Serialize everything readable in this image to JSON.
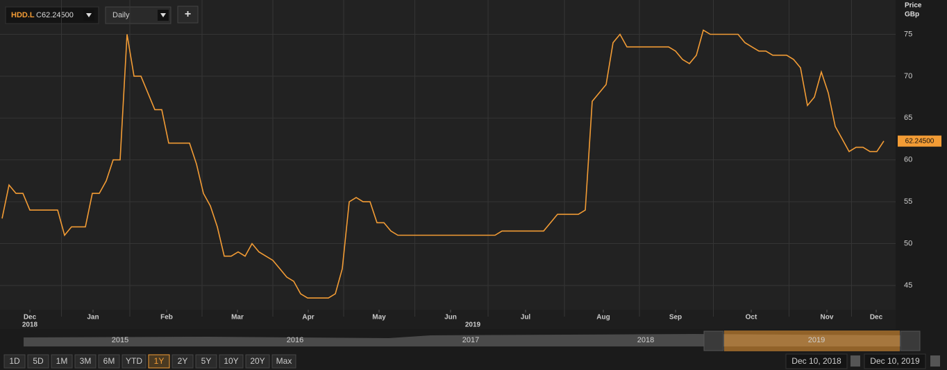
{
  "toolbar": {
    "symbol": "HDD.L",
    "close_prefix": "C",
    "close": "62.24500",
    "interval": "Daily",
    "add": "+"
  },
  "chart_data": {
    "type": "line",
    "axis_title": [
      "Price",
      "GBp"
    ],
    "color": "#f39c35",
    "values": [
      53,
      57,
      56,
      56,
      54,
      54,
      54,
      54,
      54,
      51,
      52,
      52,
      52,
      56,
      56,
      57.5,
      60,
      60,
      75,
      70,
      70,
      68,
      66,
      66,
      62,
      62,
      62,
      62,
      59.5,
      56,
      54.5,
      52,
      48.5,
      48.5,
      49,
      48.5,
      50,
      49,
      48.5,
      48,
      47,
      46,
      45.5,
      44,
      43.5,
      43.5,
      43.5,
      43.5,
      44,
      47,
      55,
      55.5,
      55,
      55,
      52.5,
      52.5,
      51.5,
      51,
      51,
      51,
      51,
      51,
      51,
      51,
      51,
      51,
      51,
      51,
      51,
      51,
      51,
      51,
      51.5,
      51.5,
      51.5,
      51.5,
      51.5,
      51.5,
      51.5,
      52.5,
      53.5,
      53.5,
      53.5,
      53.5,
      54,
      67,
      68,
      69,
      74,
      75,
      73.5,
      73.5,
      73.5,
      73.5,
      73.5,
      73.5,
      73.5,
      73,
      72,
      71.5,
      72.5,
      75.5,
      75,
      75,
      75,
      75,
      75,
      74,
      73.5,
      73,
      73,
      72.5,
      72.5,
      72.5,
      72,
      71,
      66.5,
      67.5,
      70.5,
      68,
      64,
      62.5,
      61,
      61.5,
      61.5,
      61,
      61,
      62.245
    ],
    "last_label": "62.24500",
    "xlim": [
      -0.3,
      128.7
    ],
    "xticks": [
      {
        "value": 4,
        "label": "Dec"
      },
      {
        "value": 13.1,
        "label": "Jan"
      },
      {
        "value": 23.7,
        "label": "Feb"
      },
      {
        "value": 33.9,
        "label": "Mar"
      },
      {
        "value": 44.1,
        "label": "Apr"
      },
      {
        "value": 54.3,
        "label": "May"
      },
      {
        "value": 64.6,
        "label": "Jun"
      },
      {
        "value": 75.4,
        "label": "Jul"
      },
      {
        "value": 86.6,
        "label": "Aug"
      },
      {
        "value": 97,
        "label": "Sep"
      },
      {
        "value": 107.9,
        "label": "Oct"
      },
      {
        "value": 118.8,
        "label": "Nov"
      },
      {
        "value": 125.9,
        "label": "Dec"
      }
    ],
    "year_ticks": [
      {
        "value": 4,
        "label": "2018"
      },
      {
        "value": 67.8,
        "label": "2019"
      }
    ],
    "ylim": [
      42.1,
      79.1
    ],
    "yticks": [
      45,
      50,
      55,
      60,
      65,
      70,
      75
    ],
    "grid": true
  },
  "navigator": {
    "years": [
      "2015",
      "2016",
      "2017",
      "2018",
      "2019"
    ]
  },
  "range_buttons": [
    "1D",
    "5D",
    "1M",
    "3M",
    "6M",
    "YTD",
    "1Y",
    "2Y",
    "5Y",
    "10Y",
    "20Y",
    "Max"
  ],
  "active_range": "1Y",
  "date_range": [
    "Dec 10, 2018",
    "Dec 10, 2019"
  ]
}
